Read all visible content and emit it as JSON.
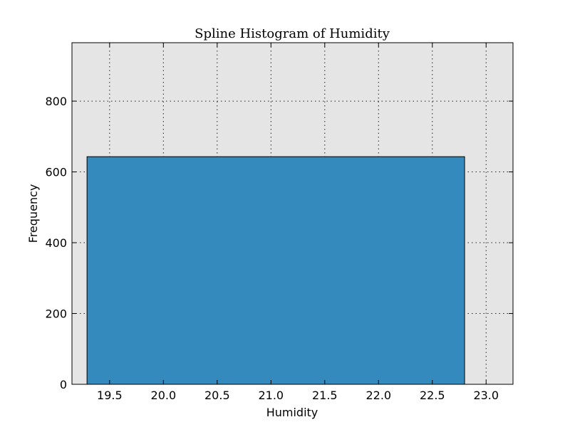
{
  "chart_data": {
    "type": "bar",
    "title": "Spline Histogram of Humidity",
    "xlabel": "Humidity",
    "ylabel": "Frequency",
    "xlim": [
      19.15,
      23.25
    ],
    "ylim": [
      0,
      965
    ],
    "xticks": [
      "19.5",
      "20.0",
      "20.5",
      "21.0",
      "21.5",
      "22.0",
      "22.5",
      "23.0"
    ],
    "yticks": [
      "0",
      "200",
      "400",
      "600",
      "800"
    ],
    "bins": [
      {
        "x0": 19.29,
        "x1": 22.8,
        "value": 643
      }
    ],
    "grid": true,
    "colors": {
      "bar": "#348abd",
      "plot_background": "#e5e5e5",
      "edge": "#000000"
    }
  }
}
